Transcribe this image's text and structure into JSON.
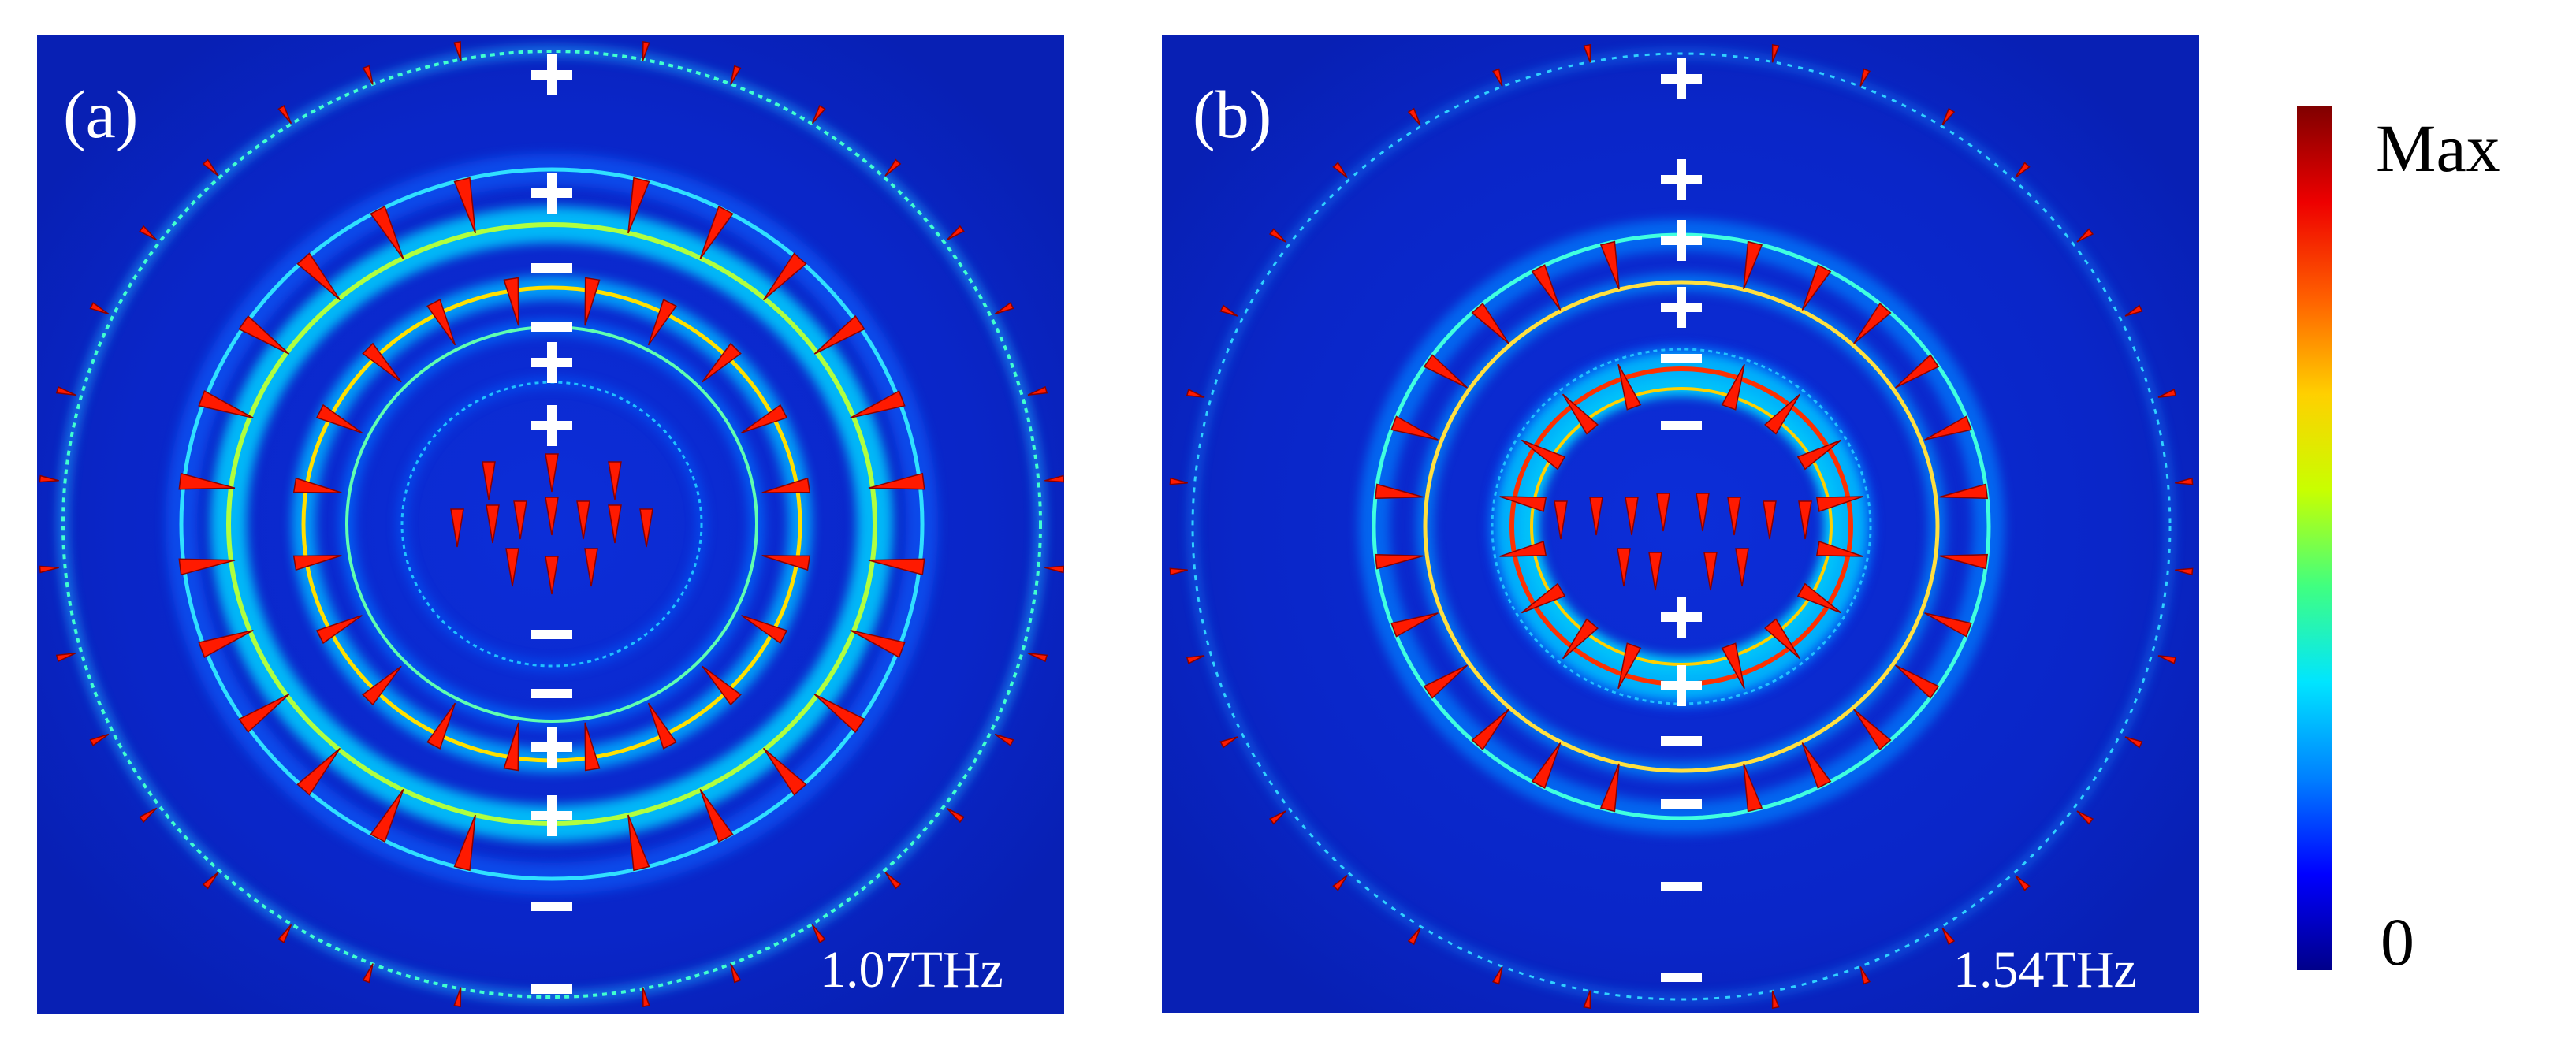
{
  "figure": {
    "panels": [
      {
        "id": "a",
        "label": "(a)",
        "frequency": "1.07THz",
        "charge_signs": [
          "+",
          "+",
          "−",
          "−",
          "+",
          "+",
          "−",
          "−",
          "+",
          "+",
          "−",
          "−"
        ]
      },
      {
        "id": "b",
        "label": "(b)",
        "frequency": "1.54THz",
        "charge_signs": [
          "+",
          "+",
          "+",
          "+",
          "−",
          "−",
          "+",
          "+",
          "−",
          "−",
          "−",
          "−"
        ]
      }
    ],
    "colorbar": {
      "max_label": "Max",
      "min_label": "0",
      "colors": [
        "#00008a",
        "#0000ff",
        "#0080ff",
        "#00e5ff",
        "#40ff80",
        "#c8ff00",
        "#ffd000",
        "#ff6000",
        "#ee0000",
        "#800000"
      ]
    },
    "palette": {
      "background": "#0a26c8",
      "arrow": "#ff1a00",
      "charge": "#ffffff"
    }
  }
}
